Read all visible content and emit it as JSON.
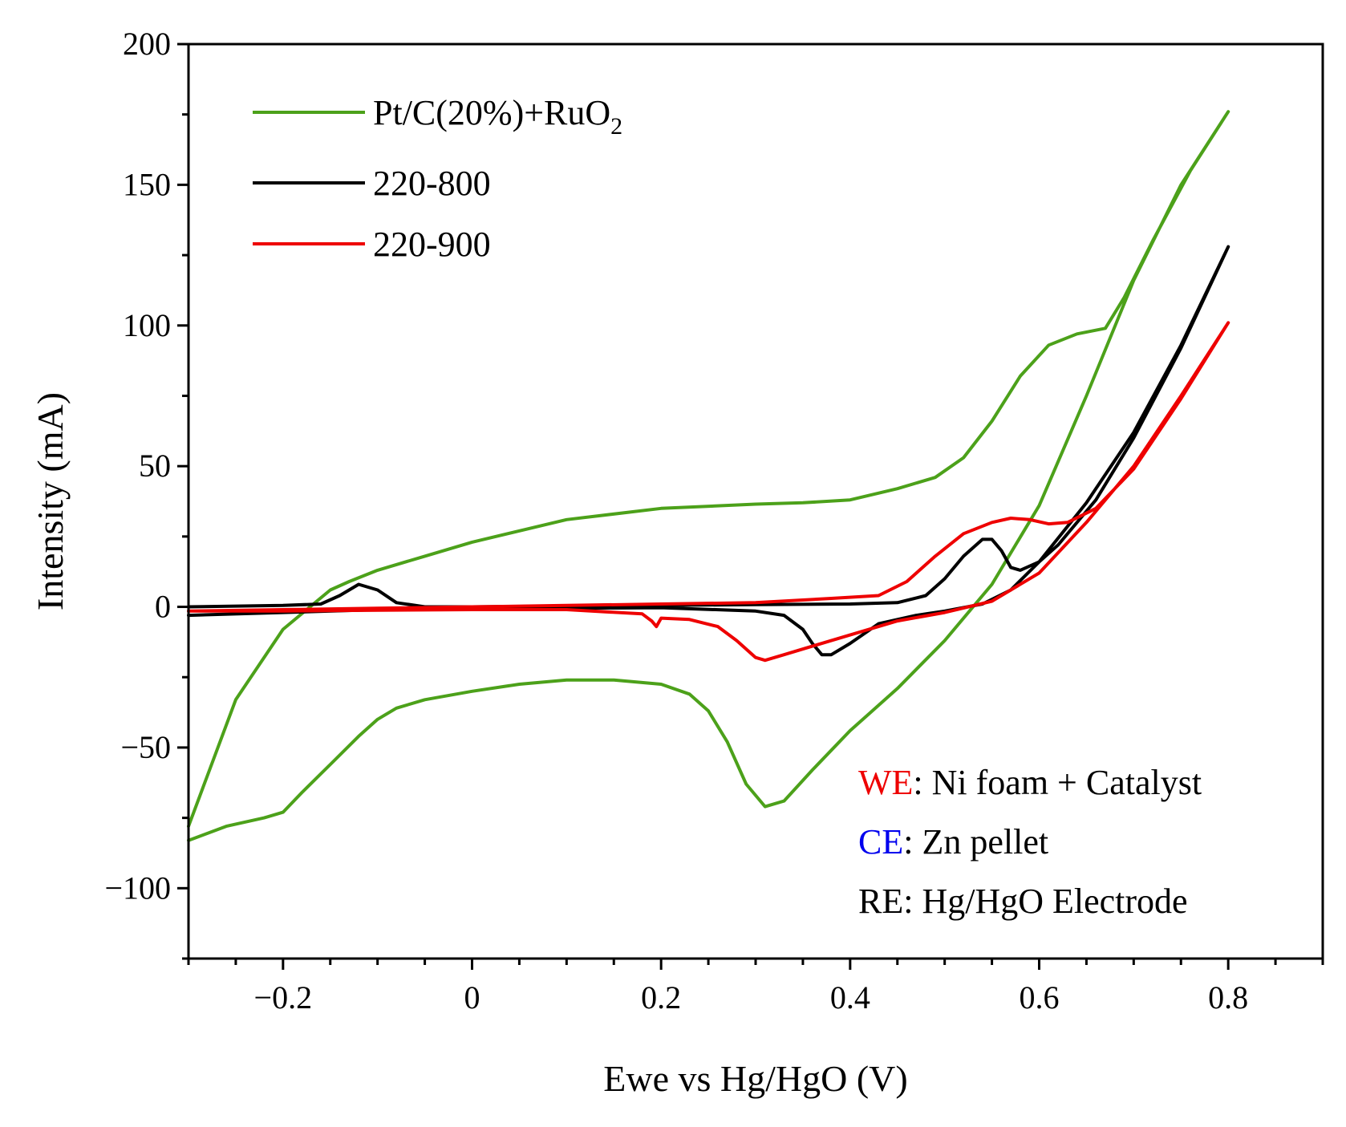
{
  "chart_data": {
    "type": "line",
    "title": "",
    "xlabel": "Ewe vs Hg/HgO (V)",
    "ylabel": "Intensity (mA)",
    "xlim": [
      -0.3,
      0.9
    ],
    "ylim": [
      -125,
      200
    ],
    "xticks": [
      -0.2,
      0,
      0.2,
      0.4,
      0.6,
      0.8
    ],
    "xtick_labels": [
      "−0.2",
      "0",
      "0.2",
      "0.4",
      "0.6",
      "0.8"
    ],
    "yticks": [
      -100,
      -50,
      0,
      50,
      100,
      150,
      200
    ],
    "ytick_labels": [
      "−100",
      "−50",
      "0",
      "50",
      "100",
      "150",
      "200"
    ],
    "grid": false,
    "legend_position": "top-left",
    "series": [
      {
        "name": "Pt/C(20%)+RuO",
        "name_subscript": "2",
        "color": "#4ca11a",
        "points": [
          [
            -0.3,
            -83
          ],
          [
            -0.26,
            -78
          ],
          [
            -0.22,
            -75
          ],
          [
            -0.2,
            -73
          ],
          [
            -0.18,
            -66
          ],
          [
            -0.15,
            -56
          ],
          [
            -0.12,
            -46
          ],
          [
            -0.1,
            -40
          ],
          [
            -0.08,
            -36
          ],
          [
            -0.05,
            -33
          ],
          [
            0,
            -30
          ],
          [
            0.05,
            -27.5
          ],
          [
            0.1,
            -26
          ],
          [
            0.15,
            -26
          ],
          [
            0.2,
            -27.5
          ],
          [
            0.23,
            -31
          ],
          [
            0.25,
            -37
          ],
          [
            0.27,
            -48
          ],
          [
            0.29,
            -63
          ],
          [
            0.31,
            -71
          ],
          [
            0.33,
            -69
          ],
          [
            0.36,
            -58
          ],
          [
            0.4,
            -44
          ],
          [
            0.45,
            -29
          ],
          [
            0.5,
            -12
          ],
          [
            0.55,
            8
          ],
          [
            0.6,
            36
          ],
          [
            0.65,
            75
          ],
          [
            0.7,
            116
          ],
          [
            0.75,
            150
          ],
          [
            0.8,
            176
          ],
          [
            0.76,
            155
          ],
          [
            0.72,
            130
          ],
          [
            0.69,
            110
          ],
          [
            0.67,
            99
          ],
          [
            0.64,
            97
          ],
          [
            0.61,
            93
          ],
          [
            0.58,
            82
          ],
          [
            0.55,
            66
          ],
          [
            0.52,
            53
          ],
          [
            0.49,
            46
          ],
          [
            0.45,
            42
          ],
          [
            0.4,
            38
          ],
          [
            0.35,
            37
          ],
          [
            0.3,
            36.5
          ],
          [
            0.2,
            35
          ],
          [
            0.1,
            31
          ],
          [
            0,
            23
          ],
          [
            -0.05,
            18
          ],
          [
            -0.1,
            13
          ],
          [
            -0.13,
            9
          ],
          [
            -0.15,
            6
          ],
          [
            -0.2,
            -8
          ],
          [
            -0.25,
            -33
          ],
          [
            -0.3,
            -78
          ]
        ]
      },
      {
        "name": "220-800",
        "color": "#000000",
        "points": [
          [
            -0.3,
            -3
          ],
          [
            -0.2,
            -2
          ],
          [
            -0.1,
            -1
          ],
          [
            0,
            -0.5
          ],
          [
            0.1,
            -0.5
          ],
          [
            0.2,
            -0.3
          ],
          [
            0.3,
            -1.5
          ],
          [
            0.33,
            -3
          ],
          [
            0.35,
            -8
          ],
          [
            0.36,
            -13
          ],
          [
            0.37,
            -17
          ],
          [
            0.38,
            -17
          ],
          [
            0.4,
            -13
          ],
          [
            0.43,
            -6
          ],
          [
            0.47,
            -3
          ],
          [
            0.5,
            -1.5
          ],
          [
            0.54,
            1
          ],
          [
            0.57,
            6
          ],
          [
            0.6,
            16
          ],
          [
            0.65,
            37
          ],
          [
            0.7,
            62
          ],
          [
            0.75,
            93
          ],
          [
            0.8,
            128
          ],
          [
            0.75,
            92
          ],
          [
            0.7,
            60
          ],
          [
            0.66,
            38
          ],
          [
            0.62,
            22
          ],
          [
            0.6,
            16
          ],
          [
            0.58,
            13
          ],
          [
            0.57,
            14
          ],
          [
            0.56,
            20
          ],
          [
            0.55,
            24
          ],
          [
            0.54,
            24
          ],
          [
            0.52,
            18
          ],
          [
            0.5,
            10
          ],
          [
            0.48,
            4
          ],
          [
            0.45,
            1.5
          ],
          [
            0.4,
            1
          ],
          [
            0.3,
            0.8
          ],
          [
            0.2,
            0.5
          ],
          [
            0.1,
            0.3
          ],
          [
            0,
            0
          ],
          [
            -0.05,
            0
          ],
          [
            -0.08,
            1.5
          ],
          [
            -0.1,
            6
          ],
          [
            -0.12,
            8
          ],
          [
            -0.14,
            4
          ],
          [
            -0.16,
            1
          ],
          [
            -0.2,
            0.5
          ],
          [
            -0.3,
            0
          ]
        ]
      },
      {
        "name": "220-900",
        "color": "#ee0000",
        "points": [
          [
            -0.3,
            -1.5
          ],
          [
            -0.2,
            -1.5
          ],
          [
            -0.1,
            -1.2
          ],
          [
            0,
            -1
          ],
          [
            0.1,
            -1
          ],
          [
            0.18,
            -2.5
          ],
          [
            0.19,
            -5
          ],
          [
            0.195,
            -7
          ],
          [
            0.2,
            -4
          ],
          [
            0.23,
            -4.5
          ],
          [
            0.26,
            -7
          ],
          [
            0.28,
            -12
          ],
          [
            0.3,
            -18
          ],
          [
            0.31,
            -19
          ],
          [
            0.33,
            -17
          ],
          [
            0.36,
            -14
          ],
          [
            0.4,
            -10
          ],
          [
            0.45,
            -5
          ],
          [
            0.5,
            -2
          ],
          [
            0.55,
            2
          ],
          [
            0.6,
            12
          ],
          [
            0.65,
            30
          ],
          [
            0.7,
            50
          ],
          [
            0.75,
            75
          ],
          [
            0.8,
            101
          ],
          [
            0.75,
            74
          ],
          [
            0.7,
            49
          ],
          [
            0.66,
            35
          ],
          [
            0.63,
            30
          ],
          [
            0.61,
            29.5
          ],
          [
            0.59,
            31
          ],
          [
            0.57,
            31.5
          ],
          [
            0.55,
            30
          ],
          [
            0.52,
            26
          ],
          [
            0.49,
            18
          ],
          [
            0.46,
            9
          ],
          [
            0.43,
            4
          ],
          [
            0.38,
            3
          ],
          [
            0.3,
            1.5
          ],
          [
            0.2,
            1
          ],
          [
            0.1,
            0.5
          ],
          [
            0,
            0
          ],
          [
            -0.1,
            -0.5
          ],
          [
            -0.2,
            -1
          ],
          [
            -0.3,
            -1.5
          ]
        ]
      }
    ],
    "annotations": [
      {
        "label": "WE",
        "label_color": "#ee0000",
        "text": ": Ni foam + Catalyst"
      },
      {
        "label": "CE",
        "label_color": "#0000ee",
        "text": ": Zn pellet"
      },
      {
        "label": "RE",
        "label_color": "#000000",
        "text": ": Hg/HgO Electrode"
      }
    ]
  }
}
